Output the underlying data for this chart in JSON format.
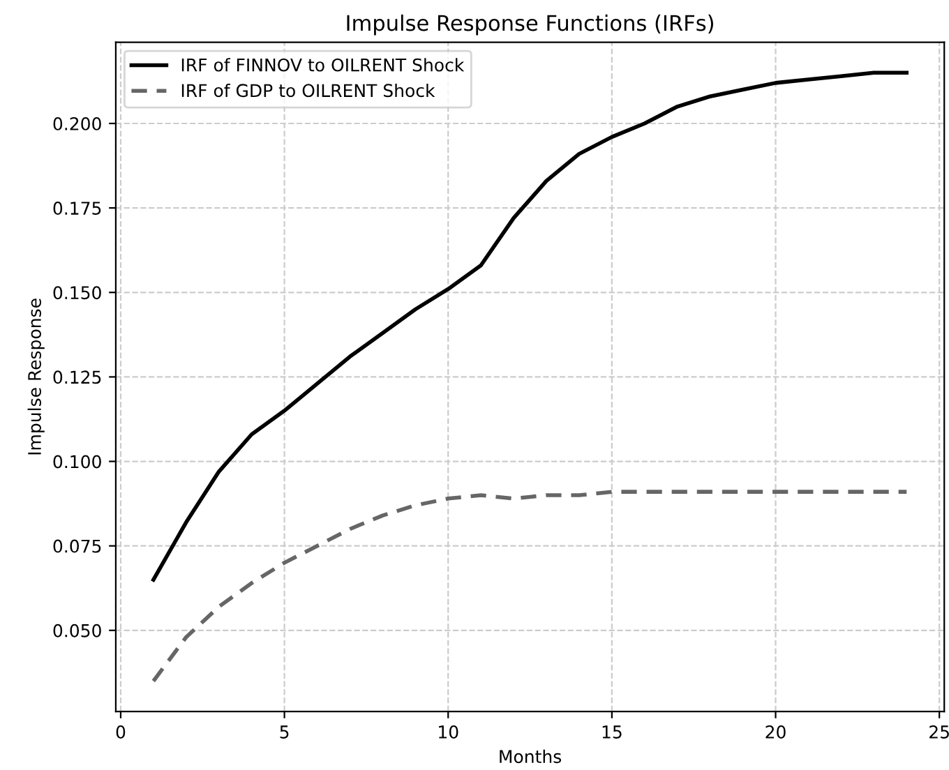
{
  "chart_data": {
    "type": "line",
    "title": "Impulse Response Functions (IRFs)",
    "xlabel": "Months",
    "ylabel": "Impulse Response",
    "x": [
      1,
      2,
      3,
      4,
      5,
      6,
      7,
      8,
      9,
      10,
      11,
      12,
      13,
      14,
      15,
      16,
      17,
      18,
      19,
      20,
      21,
      22,
      23,
      24
    ],
    "series": [
      {
        "name": "IRF of FINNOV to OILRENT Shock",
        "color": "#000000",
        "line_style": "solid",
        "values": [
          0.065,
          0.082,
          0.097,
          0.108,
          0.115,
          0.123,
          0.131,
          0.138,
          0.145,
          0.151,
          0.158,
          0.172,
          0.183,
          0.191,
          0.196,
          0.2,
          0.205,
          0.208,
          0.21,
          0.212,
          0.213,
          0.214,
          0.215,
          0.215
        ]
      },
      {
        "name": "IRF of GDP to OILRENT Shock",
        "color": "#666666",
        "line_style": "dashed",
        "values": [
          0.035,
          0.048,
          0.057,
          0.064,
          0.07,
          0.075,
          0.08,
          0.084,
          0.087,
          0.089,
          0.09,
          0.089,
          0.09,
          0.09,
          0.091,
          0.091,
          0.091,
          0.091,
          0.091,
          0.091,
          0.091,
          0.091,
          0.091,
          0.091
        ]
      }
    ],
    "xlim": [
      -0.15,
      25.15
    ],
    "ylim": [
      0.026,
      0.224
    ],
    "xticks": [
      0,
      5,
      10,
      15,
      20,
      25
    ],
    "yticks": [
      {
        "value": 0.05,
        "label": "0.050"
      },
      {
        "value": 0.075,
        "label": "0.075"
      },
      {
        "value": 0.1,
        "label": "0.100"
      },
      {
        "value": 0.125,
        "label": "0.125"
      },
      {
        "value": 0.15,
        "label": "0.150"
      },
      {
        "value": 0.175,
        "label": "0.175"
      },
      {
        "value": 0.2,
        "label": "0.200"
      }
    ],
    "grid": true,
    "legend": "top left"
  }
}
